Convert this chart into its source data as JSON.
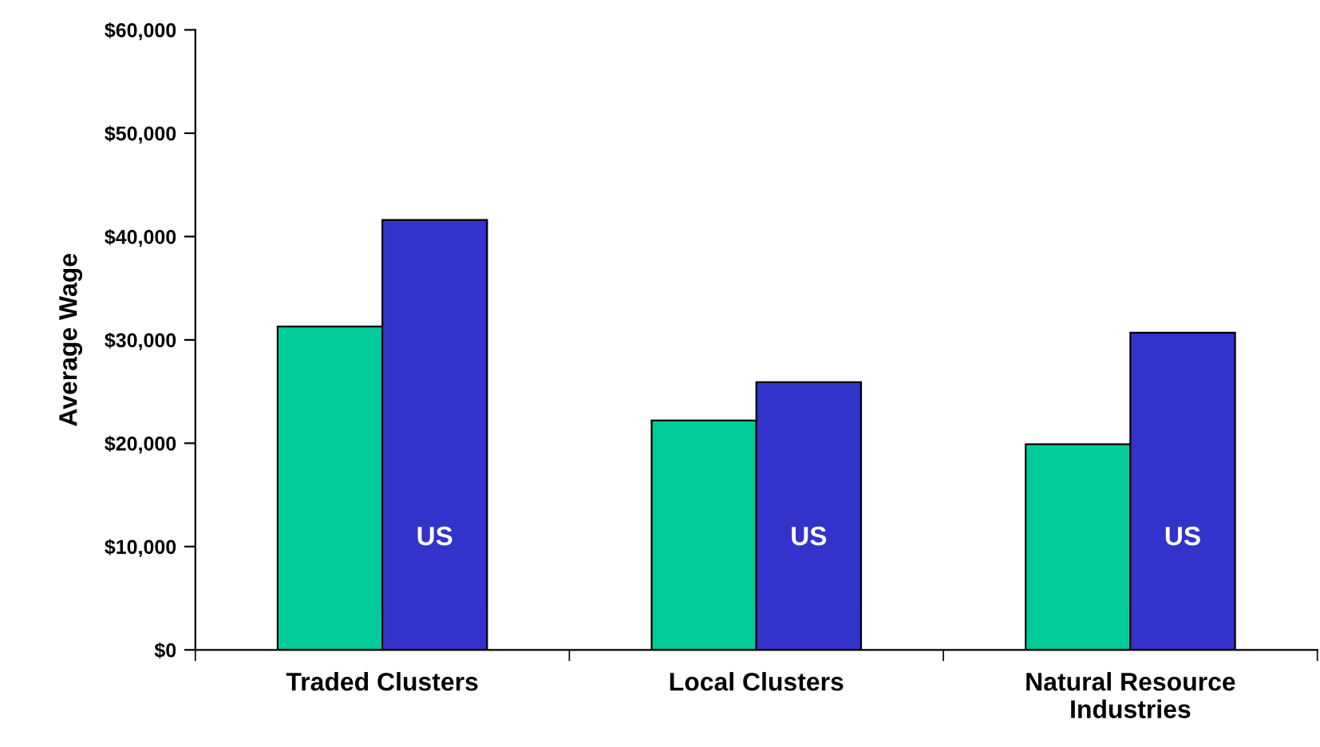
{
  "chart_data": {
    "type": "bar",
    "ylabel": "Average Wage",
    "categories": [
      "Traded Clusters",
      "Local Clusters",
      "Natural Resource\nIndustries"
    ],
    "series": [
      {
        "color": "#00cc99",
        "values": [
          31300,
          22200,
          19900
        ]
      },
      {
        "name": "US",
        "color": "#3333cc",
        "values": [
          41600,
          25900,
          30700
        ]
      }
    ],
    "ylim": [
      0,
      60000
    ],
    "yticks": [
      {
        "value": 0,
        "label": "$0"
      },
      {
        "value": 10000,
        "label": "$10,000"
      },
      {
        "value": 20000,
        "label": "$20,000"
      },
      {
        "value": 30000,
        "label": "$30,000"
      },
      {
        "value": 40000,
        "label": "$40,000"
      },
      {
        "value": 50000,
        "label": "$50,000"
      },
      {
        "value": 60000,
        "label": "$60,000"
      }
    ],
    "grid": false,
    "legend": false
  }
}
